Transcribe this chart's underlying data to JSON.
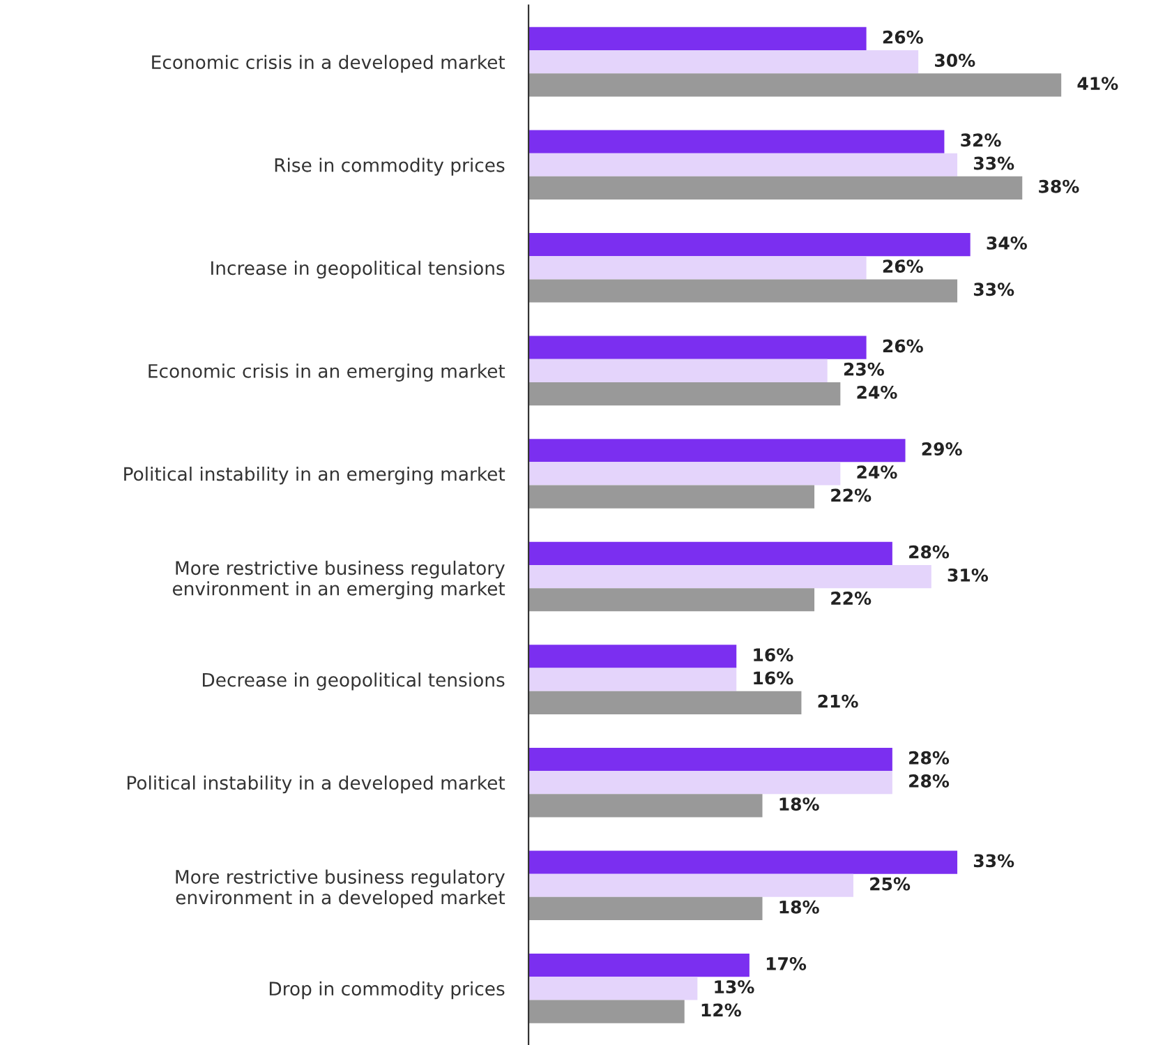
{
  "chart_data": {
    "type": "bar",
    "orientation": "horizontal",
    "tick_labels": "y",
    "grid": false,
    "legend": false,
    "categories": [
      "Economic crisis in a developed market",
      "Rise in commodity prices",
      "Increase in geopolitical tensions",
      "Economic crisis in an emerging market",
      "Political instability in an emerging market",
      "More restrictive business regulatory\nenvironment in an emerging market",
      "Decrease in geopolitical tensions",
      "Political instability in a developed market",
      "More restrictive business regulatory\nenvironment in a developed market",
      "Drop in commodity prices"
    ],
    "series": [
      {
        "color": "#7b2ff0",
        "values": [
          26,
          32,
          34,
          26,
          29,
          28,
          16,
          28,
          33,
          17
        ],
        "value_labels": [
          "26%",
          "32%",
          "34%",
          "26%",
          "29%",
          "28%",
          "16%",
          "28%",
          "33%",
          "17%"
        ]
      },
      {
        "color": "#e4d4fb",
        "values": [
          30,
          33,
          26,
          23,
          24,
          31,
          16,
          28,
          25,
          13
        ],
        "value_labels": [
          "30%",
          "33%",
          "26%",
          "23%",
          "24%",
          "31%",
          "16%",
          "28%",
          "25%",
          "13%"
        ]
      },
      {
        "color": "#999999",
        "values": [
          41,
          38,
          33,
          24,
          22,
          22,
          21,
          18,
          18,
          12
        ],
        "value_labels": [
          "41%",
          "38%",
          "33%",
          "24%",
          "22%",
          "22%",
          "21%",
          "18%",
          "18%",
          "12%"
        ]
      }
    ]
  }
}
